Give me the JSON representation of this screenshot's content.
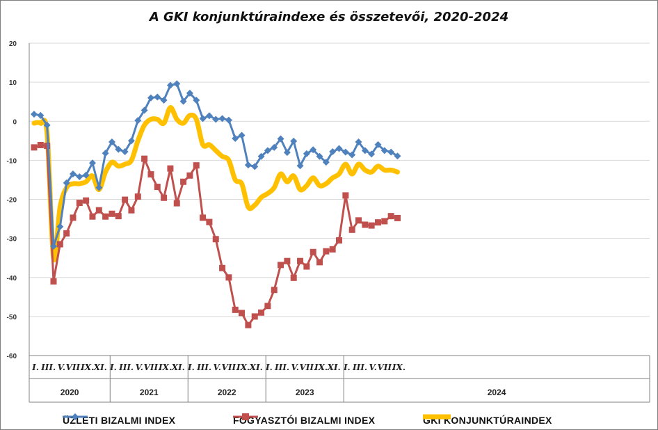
{
  "title": "A GKI konjunktúraindexe és összetevői, 2020-2024",
  "colors": {
    "business": "#4f81bd",
    "consumer": "#c0504d",
    "gki": "#ffc000",
    "grid": "#d9d9d9",
    "axis": "#808080"
  },
  "legend": [
    {
      "label": "Üzleti bizalmi index",
      "display": "ÜZLETI BIZALMI INDEX",
      "key": "business"
    },
    {
      "label": "Fogyasztói bizalmi index",
      "display": "FOGYASZTÓI BIZALMI INDEX",
      "key": "consumer"
    },
    {
      "label": "GKI konjunktúraindex",
      "display": "GKI KONJUNKTÚRAINDEX",
      "key": "gki"
    }
  ],
  "chart_data": {
    "type": "line",
    "title": "A GKI konjunktúraindexe és összetevői, 2020-2024",
    "ylim": [
      -60,
      20
    ],
    "yticks": [
      20,
      10,
      0,
      -10,
      -20,
      -30,
      -40,
      -50,
      -60
    ],
    "month_labels": [
      "I.",
      "III.",
      "V.",
      "VII.",
      "IX.",
      "XI."
    ],
    "last_year_labels": [
      "I.",
      "III.",
      "V.",
      "VII.",
      "IX."
    ],
    "years": [
      "2020",
      "2021",
      "2022",
      "2023",
      "2024"
    ],
    "months_per_year": [
      12,
      12,
      12,
      12,
      9
    ],
    "legend_position": "bottom",
    "grid": true,
    "series": [
      {
        "name": "Üzleti bizalmi index",
        "key": "business",
        "values": [
          1.8,
          1.5,
          -1.0,
          -32.0,
          -27.0,
          -15.8,
          -13.5,
          -14.2,
          -13.8,
          -10.7,
          -17.0,
          -8.2,
          -5.3,
          -7.2,
          -7.8,
          -5.0,
          0.2,
          2.8,
          6.0,
          6.2,
          5.4,
          9.2,
          9.6,
          5.1,
          7.2,
          5.4,
          0.7,
          1.4,
          0.5,
          0.7,
          0.3,
          -4.4,
          -3.6,
          -11.2,
          -11.6,
          -9.0,
          -7.5,
          -6.7,
          -4.5,
          -8.0,
          -5.1,
          -11.4,
          -8.3,
          -7.3,
          -9.0,
          -10.5,
          -7.8,
          -7.0,
          -7.9,
          -8.6,
          -5.3,
          -7.5,
          -8.4,
          -6.0,
          -7.5,
          -7.9,
          -8.9
        ]
      },
      {
        "name": "Fogyasztói bizalmi index",
        "key": "consumer",
        "values": [
          -6.7,
          -6.1,
          -6.3,
          -41.0,
          -31.5,
          -28.7,
          -24.7,
          -20.9,
          -20.3,
          -24.4,
          -22.8,
          -24.4,
          -23.7,
          -24.3,
          -20.1,
          -22.8,
          -19.3,
          -9.6,
          -13.6,
          -16.8,
          -19.6,
          -12.1,
          -21.0,
          -15.5,
          -13.9,
          -11.3,
          -24.7,
          -25.8,
          -30.2,
          -37.6,
          -40.0,
          -48.3,
          -49.1,
          -52.2,
          -50.0,
          -49.0,
          -47.3,
          -43.2,
          -36.8,
          -35.8,
          -40.1,
          -35.8,
          -37.2,
          -33.5,
          -36.1,
          -33.3,
          -32.8,
          -30.5,
          -19.0,
          -27.8,
          -25.4,
          -26.5,
          -26.7,
          -25.9,
          -25.6,
          -24.3,
          -24.8
        ]
      },
      {
        "name": "GKI konjunktúraindex",
        "key": "gki",
        "values": [
          -0.5,
          -0.5,
          -3.0,
          -35.0,
          -22.0,
          -17.0,
          -16.0,
          -16.0,
          -15.5,
          -14.0,
          -17.5,
          -13.0,
          -10.5,
          -11.5,
          -11.0,
          -10.0,
          -5.0,
          -1.0,
          0.5,
          0.5,
          -0.5,
          3.5,
          0.5,
          -0.5,
          1.5,
          0.5,
          -6.0,
          -6.0,
          -7.5,
          -9.0,
          -10.0,
          -15.0,
          -16.0,
          -22.0,
          -21.5,
          -19.5,
          -18.5,
          -17.0,
          -13.5,
          -15.5,
          -14.0,
          -17.5,
          -16.5,
          -14.5,
          -16.5,
          -16.0,
          -14.5,
          -13.5,
          -11.0,
          -13.5,
          -11.0,
          -12.5,
          -13.0,
          -11.5,
          -12.5,
          -12.5,
          -13.0
        ]
      }
    ]
  }
}
